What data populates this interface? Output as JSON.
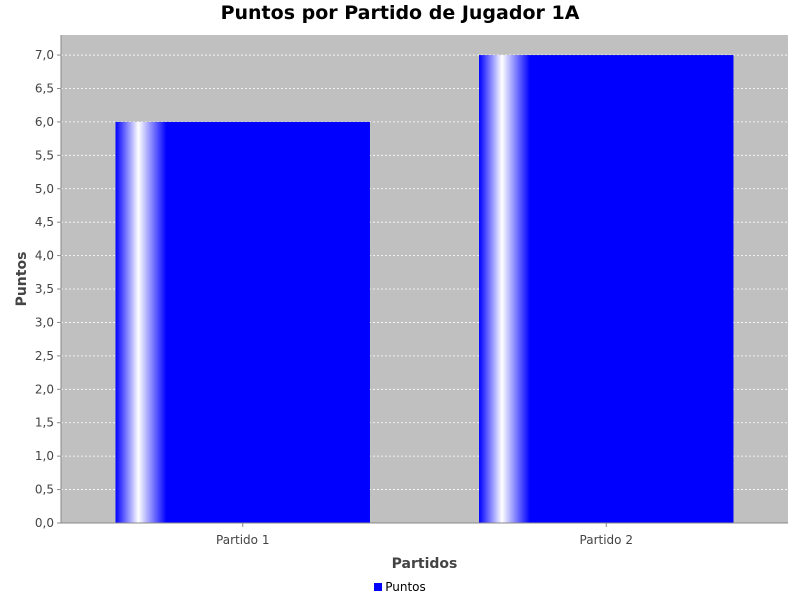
{
  "chart_data": {
    "type": "bar",
    "title": "Puntos por Partido de Jugador 1A",
    "xlabel": "Partidos",
    "ylabel": "Puntos",
    "categories": [
      "Partido 1",
      "Partido 2"
    ],
    "series": [
      {
        "name": "Puntos",
        "values": [
          6.0,
          7.0
        ],
        "color": "#0000ff"
      }
    ],
    "ylim": [
      0,
      7.3
    ],
    "yticks": [
      0,
      0.5,
      1,
      1.5,
      2,
      2.5,
      3,
      3.5,
      4,
      4.5,
      5,
      5.5,
      6,
      6.5,
      7
    ],
    "ytick_labels": [
      "0,0",
      "0,5",
      "1,0",
      "1,5",
      "2,0",
      "2,5",
      "3,0",
      "3,5",
      "4,0",
      "4,5",
      "5,0",
      "5,5",
      "6,0",
      "6,5",
      "7,0"
    ],
    "grid": true,
    "legend_position": "bottom",
    "colors": {
      "plot_background": "#c0c0c0",
      "gridline": "#ffffff",
      "bar": "#0000ff"
    }
  }
}
